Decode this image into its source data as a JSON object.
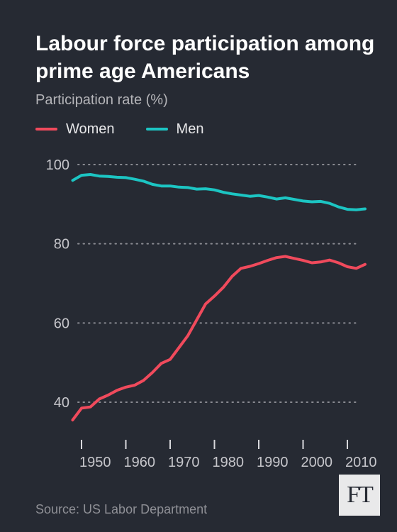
{
  "chart_data": {
    "type": "line",
    "title": "Labour force participation among prime age Americans",
    "subtitle": "Participation rate (%)",
    "source": "Source: US Labor Department",
    "logo": "FT",
    "colors": {
      "Women": "#f04a5c",
      "Men": "#1cc5c3",
      "background": "#262a33"
    },
    "legend_placement": "top-left",
    "grid": "horizontal-dotted",
    "xlim": [
      1948,
      2015
    ],
    "ylim": [
      33,
      102
    ],
    "x_ticks": [
      1950,
      1960,
      1970,
      1980,
      1990,
      2000,
      2010
    ],
    "x_tick_labels": [
      "1950",
      "1960",
      "1970",
      "1980",
      "1990",
      "2000",
      "2010"
    ],
    "y_ticks": [
      40,
      60,
      80,
      100
    ],
    "y_tick_labels": [
      "40",
      "60",
      "80",
      "100"
    ],
    "series": [
      {
        "name": "Women",
        "x": [
          1948,
          1950,
          1952,
          1954,
          1956,
          1958,
          1960,
          1962,
          1964,
          1966,
          1968,
          1970,
          1972,
          1974,
          1976,
          1978,
          1980,
          1982,
          1984,
          1986,
          1988,
          1990,
          1992,
          1994,
          1996,
          1998,
          2000,
          2002,
          2004,
          2006,
          2008,
          2010,
          2012,
          2014
        ],
        "values": [
          35.5,
          38.5,
          38.8,
          40.8,
          41.8,
          43.0,
          43.8,
          44.3,
          45.5,
          47.5,
          49.8,
          50.8,
          53.8,
          56.8,
          60.8,
          64.8,
          66.8,
          69.0,
          71.8,
          73.8,
          74.3,
          75.0,
          75.8,
          76.5,
          76.8,
          76.3,
          75.8,
          75.2,
          75.4,
          75.9,
          75.2,
          74.2,
          73.8,
          74.8
        ]
      },
      {
        "name": "Men",
        "x": [
          1948,
          1950,
          1952,
          1954,
          1956,
          1958,
          1960,
          1962,
          1964,
          1966,
          1968,
          1970,
          1972,
          1974,
          1976,
          1978,
          1980,
          1982,
          1984,
          1986,
          1988,
          1990,
          1992,
          1994,
          1996,
          1998,
          2000,
          2002,
          2004,
          2006,
          2008,
          2010,
          2012,
          2014
        ],
        "values": [
          96.0,
          97.3,
          97.5,
          97.1,
          97.0,
          96.8,
          96.7,
          96.3,
          95.8,
          95.0,
          94.6,
          94.6,
          94.3,
          94.2,
          93.8,
          93.9,
          93.6,
          93.0,
          92.6,
          92.3,
          92.0,
          92.2,
          91.8,
          91.3,
          91.6,
          91.2,
          90.8,
          90.6,
          90.7,
          90.2,
          89.3,
          88.7,
          88.6,
          88.8
        ]
      }
    ]
  }
}
